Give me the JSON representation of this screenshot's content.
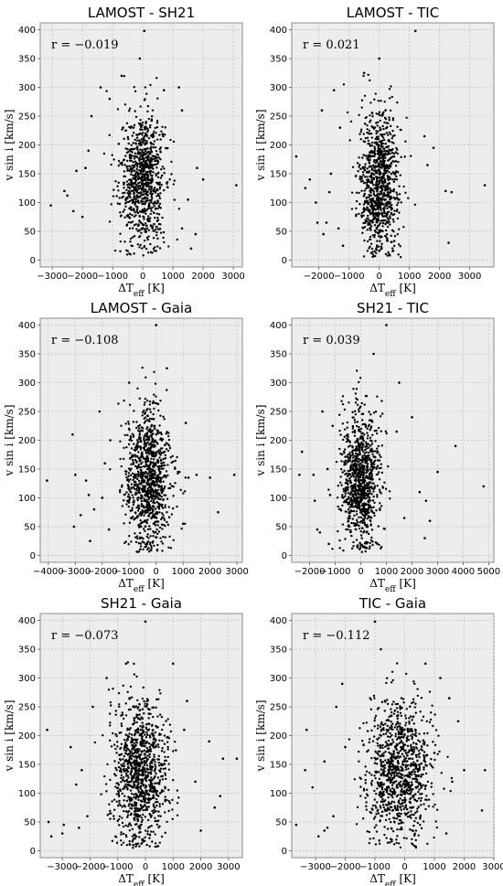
{
  "chart_data": [
    {
      "type": "scatter",
      "title": "LAMOST - SH21",
      "annotation": "r = −0.019",
      "xlabel": "ΔT_eff [K]",
      "ylabel": "v sin i [km/s]",
      "xlim": [
        -3400,
        3300
      ],
      "ylim": [
        -12,
        412
      ],
      "xticks": [
        -3000,
        -2000,
        -1000,
        0,
        1000,
        2000,
        3000
      ],
      "yticks": [
        0,
        50,
        100,
        150,
        200,
        250,
        300,
        350,
        400
      ],
      "grid": true,
      "cloud": {
        "n": 900,
        "x_center": 0,
        "x_std": 380,
        "y_center": 140,
        "y_std": 58
      },
      "points": [
        [
          -3050,
          95
        ],
        [
          -2600,
          120
        ],
        [
          -2500,
          112
        ],
        [
          -2200,
          155
        ],
        [
          -1900,
          160
        ],
        [
          -1700,
          250
        ],
        [
          -1400,
          300
        ],
        [
          -1100,
          280
        ],
        [
          1300,
          260
        ],
        [
          1500,
          105
        ],
        [
          1800,
          160
        ],
        [
          1750,
          45
        ],
        [
          3100,
          130
        ],
        [
          50,
          398
        ],
        [
          -100,
          350
        ],
        [
          -700,
          320
        ],
        [
          700,
          295
        ],
        [
          1200,
          300
        ],
        [
          1300,
          55
        ],
        [
          -1800,
          190
        ],
        [
          -2300,
          85
        ],
        [
          -2000,
          75
        ],
        [
          1600,
          20
        ],
        [
          2000,
          140
        ]
      ]
    },
    {
      "type": "scatter",
      "title": "LAMOST - TIC",
      "annotation": "r = 0.021",
      "xlabel": "ΔT_eff [K]",
      "ylabel": "v sin i [km/s]",
      "xlim": [
        -2900,
        3800
      ],
      "ylim": [
        -12,
        412
      ],
      "xticks": [
        -2000,
        -1000,
        0,
        1000,
        2000,
        3000
      ],
      "yticks": [
        0,
        50,
        100,
        150,
        200,
        250,
        300,
        350,
        400
      ],
      "grid": true,
      "cloud": {
        "n": 950,
        "x_center": 0,
        "x_std": 320,
        "y_center": 130,
        "y_std": 62
      },
      "points": [
        [
          -2750,
          180
        ],
        [
          -2300,
          140
        ],
        [
          -2100,
          100
        ],
        [
          -2050,
          65
        ],
        [
          -1900,
          260
        ],
        [
          -1750,
          65
        ],
        [
          -1600,
          150
        ],
        [
          -1500,
          295
        ],
        [
          2200,
          120
        ],
        [
          2400,
          118
        ],
        [
          3500,
          130
        ],
        [
          1200,
          398
        ],
        [
          0,
          350
        ],
        [
          -500,
          325
        ],
        [
          2300,
          30
        ],
        [
          -1300,
          230
        ],
        [
          -1850,
          45
        ],
        [
          1600,
          165
        ],
        [
          1800,
          195
        ],
        [
          -1200,
          25
        ],
        [
          -2450,
          125
        ],
        [
          -1650,
          118
        ],
        [
          -1350,
          55
        ],
        [
          1500,
          215
        ]
      ]
    },
    {
      "type": "scatter",
      "title": "LAMOST - Gaia",
      "annotation": "r = −0.108",
      "xlabel": "ΔT_eff [K]",
      "ylabel": "v sin i [km/s]",
      "xlim": [
        -4300,
        3200
      ],
      "ylim": [
        -12,
        412
      ],
      "xticks": [
        -4000,
        -3000,
        -2000,
        -1000,
        0,
        1000,
        2000,
        3000
      ],
      "yticks": [
        0,
        50,
        100,
        150,
        200,
        250,
        300,
        350,
        400
      ],
      "grid": true,
      "cloud": {
        "n": 1000,
        "x_center": -300,
        "x_std": 420,
        "y_center": 135,
        "y_std": 60
      },
      "points": [
        [
          -4050,
          130
        ],
        [
          -3100,
          210
        ],
        [
          -3050,
          50
        ],
        [
          -2600,
          130
        ],
        [
          -2500,
          105
        ],
        [
          -2300,
          80
        ],
        [
          -2100,
          250
        ],
        [
          -1900,
          160
        ],
        [
          -1750,
          45
        ],
        [
          2000,
          135
        ],
        [
          2300,
          75
        ],
        [
          2900,
          140
        ],
        [
          0,
          400
        ],
        [
          -1000,
          300
        ],
        [
          400,
          325
        ],
        [
          1200,
          135
        ],
        [
          1500,
          140
        ],
        [
          -2800,
          70
        ],
        [
          -2450,
          25
        ],
        [
          1000,
          55
        ],
        [
          -1700,
          200
        ],
        [
          -2000,
          100
        ],
        [
          1100,
          230
        ],
        [
          -3000,
          140
        ]
      ]
    },
    {
      "type": "scatter",
      "title": "SH21 - TIC",
      "annotation": "r = 0.039",
      "xlabel": "ΔT_eff [K]",
      "ylabel": "v sin i [km/s]",
      "xlim": [
        -2700,
        5200
      ],
      "ylim": [
        -12,
        412
      ],
      "xticks": [
        -2000,
        -1000,
        0,
        1000,
        2000,
        3000,
        4000,
        5000
      ],
      "yticks": [
        0,
        50,
        100,
        150,
        200,
        250,
        300,
        350,
        400
      ],
      "grid": true,
      "cloud": {
        "n": 950,
        "x_center": 0,
        "x_std": 400,
        "y_center": 130,
        "y_std": 60
      },
      "points": [
        [
          -2300,
          180
        ],
        [
          -2400,
          140
        ],
        [
          -1850,
          140
        ],
        [
          -1700,
          45
        ],
        [
          -1600,
          40
        ],
        [
          -1250,
          20
        ],
        [
          -1200,
          105
        ],
        [
          2300,
          110
        ],
        [
          2550,
          95
        ],
        [
          3700,
          190
        ],
        [
          4800,
          120
        ],
        [
          1000,
          400
        ],
        [
          500,
          350
        ],
        [
          1500,
          300
        ],
        [
          2000,
          240
        ],
        [
          1400,
          215
        ],
        [
          -1100,
          225
        ],
        [
          2500,
          30
        ],
        [
          -1500,
          250
        ],
        [
          1700,
          65
        ],
        [
          -1800,
          95
        ],
        [
          2700,
          60
        ],
        [
          -1300,
          150
        ],
        [
          3000,
          145
        ]
      ]
    },
    {
      "type": "scatter",
      "title": "SH21 - Gaia",
      "annotation": "r = −0.073",
      "xlabel": "ΔT_eff [K]",
      "ylabel": "v sin i [km/s]",
      "xlim": [
        -3800,
        3500
      ],
      "ylim": [
        -12,
        412
      ],
      "xticks": [
        -3000,
        -2000,
        -1000,
        0,
        1000,
        2000,
        3000
      ],
      "yticks": [
        0,
        50,
        100,
        150,
        200,
        250,
        300,
        350,
        400
      ],
      "grid": true,
      "cloud": {
        "n": 1050,
        "x_center": -200,
        "x_std": 500,
        "y_center": 135,
        "y_std": 62
      },
      "points": [
        [
          -3550,
          210
        ],
        [
          -3500,
          50
        ],
        [
          -3400,
          25
        ],
        [
          -3000,
          30
        ],
        [
          -2700,
          180
        ],
        [
          -2400,
          40
        ],
        [
          -2300,
          140
        ],
        [
          -2100,
          60
        ],
        [
          2300,
          190
        ],
        [
          2700,
          95
        ],
        [
          2800,
          160
        ],
        [
          3300,
          160
        ],
        [
          0,
          398
        ],
        [
          -700,
          325
        ],
        [
          1000,
          325
        ],
        [
          1500,
          260
        ],
        [
          2500,
          75
        ],
        [
          -1400,
          300
        ],
        [
          -2950,
          45
        ],
        [
          -2500,
          115
        ],
        [
          1800,
          120
        ],
        [
          -1900,
          250
        ],
        [
          2000,
          35
        ],
        [
          1400,
          210
        ]
      ]
    },
    {
      "type": "scatter",
      "title": "TIC - Gaia",
      "annotation": "r = −0.112",
      "xlabel": "ΔT_eff [K]",
      "ylabel": "v sin i [km/s]",
      "xlim": [
        -3800,
        3000
      ],
      "ylim": [
        -12,
        412
      ],
      "xticks": [
        -3000,
        -2000,
        -1000,
        0,
        1000,
        2000,
        3000
      ],
      "yticks": [
        0,
        50,
        100,
        150,
        200,
        250,
        300,
        350,
        400
      ],
      "grid": true,
      "cloud": {
        "n": 1000,
        "x_center": -200,
        "x_std": 550,
        "y_center": 140,
        "y_std": 64
      },
      "points": [
        [
          -3650,
          45
        ],
        [
          -3350,
          140
        ],
        [
          -3100,
          110
        ],
        [
          -2900,
          25
        ],
        [
          -2700,
          155
        ],
        [
          -2600,
          40
        ],
        [
          -2300,
          250
        ],
        [
          -2100,
          290
        ],
        [
          1500,
          265
        ],
        [
          1800,
          225
        ],
        [
          2600,
          70
        ],
        [
          2700,
          140
        ],
        [
          -1000,
          398
        ],
        [
          -800,
          350
        ],
        [
          700,
          325
        ],
        [
          1200,
          300
        ],
        [
          -2700,
          35
        ],
        [
          -2000,
          180
        ],
        [
          1000,
          170
        ],
        [
          1600,
          120
        ],
        [
          -3300,
          210
        ],
        [
          -2400,
          60
        ],
        [
          1400,
          30
        ],
        [
          2000,
          140
        ]
      ]
    }
  ]
}
